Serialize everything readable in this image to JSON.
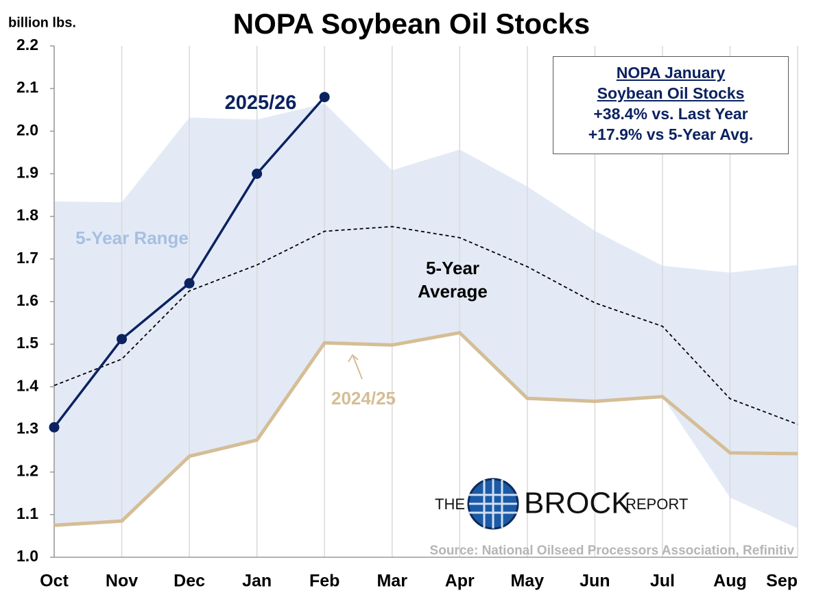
{
  "chart_data": {
    "type": "line",
    "title": "NOPA Soybean Oil Stocks",
    "ylabel": "billion lbs.",
    "categories": [
      "Oct",
      "Nov",
      "Dec",
      "Jan",
      "Feb",
      "Mar",
      "Apr",
      "May",
      "Jun",
      "Jul",
      "Aug",
      "Sep"
    ],
    "ylim": [
      1.0,
      2.2
    ],
    "yticks": [
      {
        "value": 1.0,
        "label": "1.0"
      },
      1.1,
      1.2,
      1.3,
      1.4,
      1.5,
      1.6,
      1.7,
      1.8,
      1.9,
      {
        "value": 2.0,
        "label": "2.0"
      },
      2.1,
      2.2
    ],
    "xgrid": true,
    "series": [
      {
        "name": "5-Year Range",
        "type": "band",
        "color": "#e3eaf6",
        "label_color": "#a6bfe2",
        "lower": [
          1.075,
          1.085,
          1.237,
          1.275,
          1.503,
          1.498,
          1.527,
          1.373,
          1.366,
          1.377,
          1.14,
          1.068
        ],
        "upper": [
          1.835,
          1.833,
          2.032,
          2.027,
          2.065,
          1.908,
          1.957,
          1.87,
          1.766,
          1.684,
          1.668,
          1.686
        ]
      },
      {
        "name": "5-Year Average",
        "color": "#000000",
        "dashed": true,
        "values": [
          1.403,
          1.465,
          1.625,
          1.686,
          1.765,
          1.776,
          1.75,
          1.682,
          1.597,
          1.542,
          1.372,
          1.312
        ]
      },
      {
        "name": "2024/25",
        "color": "#d5bd95",
        "values": [
          1.075,
          1.085,
          1.237,
          1.275,
          1.503,
          1.498,
          1.527,
          1.373,
          1.366,
          1.377,
          1.245,
          1.243
        ]
      },
      {
        "name": "2025/26",
        "color": "#0b2260",
        "markers": true,
        "values": [
          1.305,
          1.512,
          1.643,
          1.9,
          2.08,
          null,
          null,
          null,
          null,
          null,
          null,
          null
        ]
      }
    ],
    "annotation_box": {
      "title": "NOPA January Soybean Oil Stocks",
      "lines": [
        "+38.4% vs. Last Year",
        "+17.9% vs 5-Year Avg."
      ]
    },
    "source": "Source: National Oilseed Processors Association, Refinitiv",
    "logo": {
      "left": "THE",
      "main": "BROCK",
      "right": "REPORT"
    }
  }
}
